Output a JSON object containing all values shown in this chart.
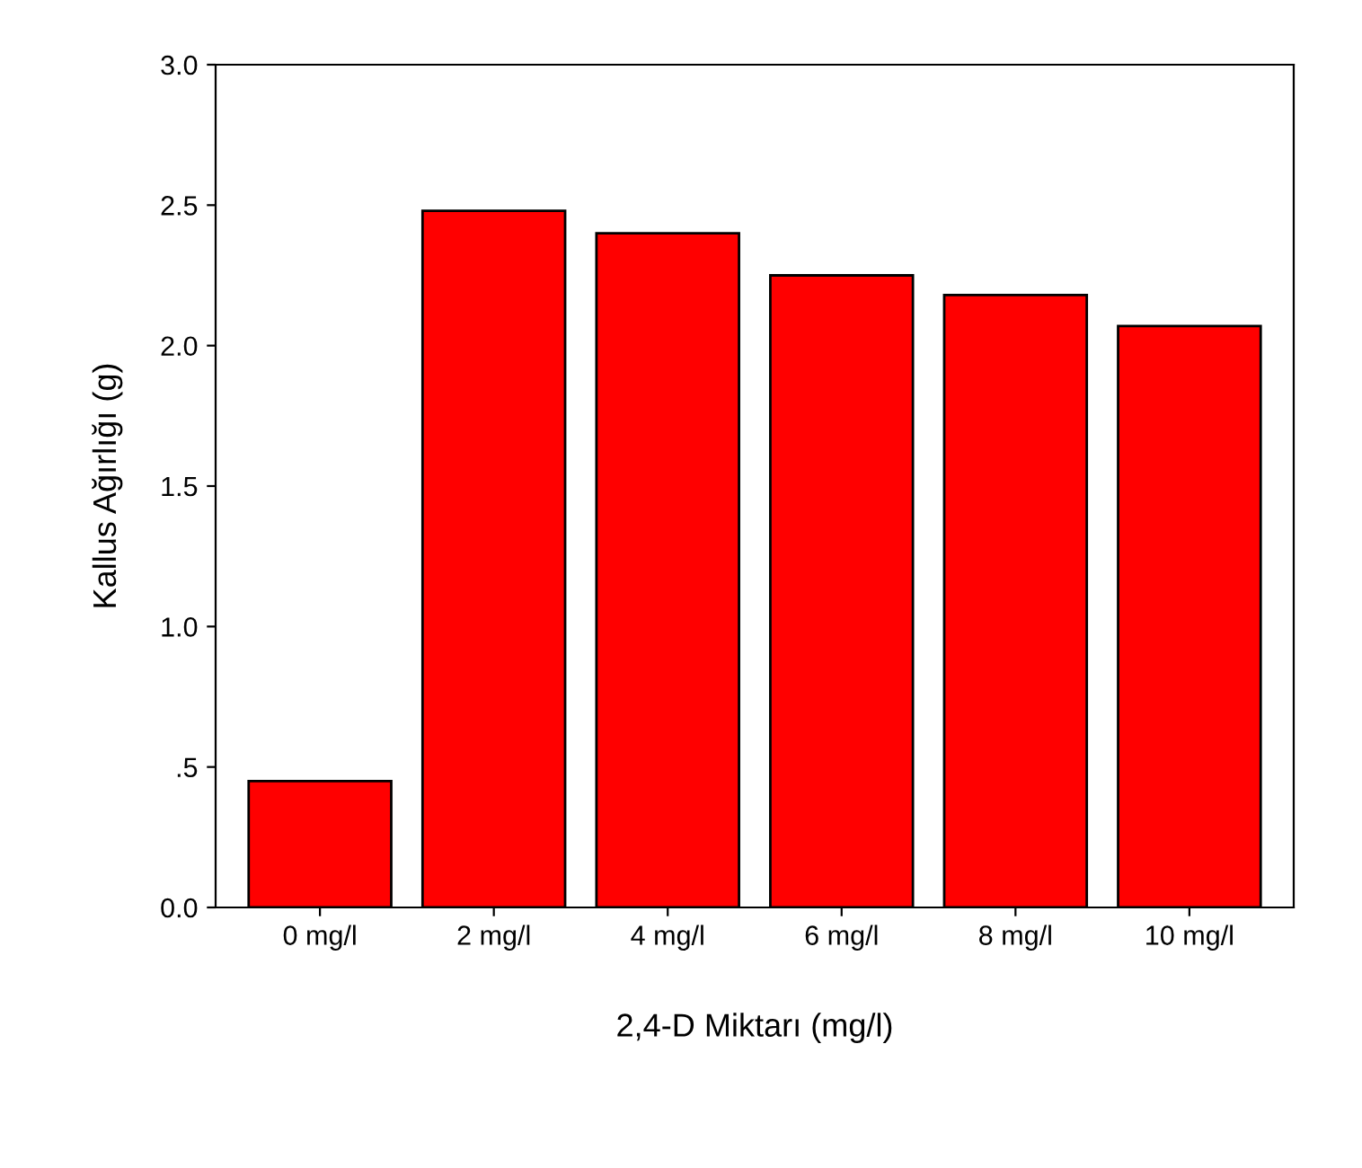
{
  "chart_data": {
    "type": "bar",
    "xlabel": "2,4-D Miktarı (mg/l)",
    "ylabel": "Kallus Ağırlığı (g)",
    "categories": [
      "0 mg/l",
      "2 mg/l",
      "4 mg/l",
      "6 mg/l",
      "8 mg/l",
      "10 mg/l"
    ],
    "values": [
      0.45,
      2.48,
      2.4,
      2.25,
      2.18,
      2.07
    ],
    "color": "#ff0000",
    "ylim": [
      0,
      3
    ],
    "yticks": [
      {
        "value": 0,
        "label": "0.0"
      },
      {
        "value": 0.5,
        "label": ".5"
      },
      {
        "value": 1,
        "label": "1.0"
      },
      {
        "value": 1.5,
        "label": "1.5"
      },
      {
        "value": 2,
        "label": "2.0"
      },
      {
        "value": 2.5,
        "label": "2.5"
      },
      {
        "value": 3,
        "label": "3.0"
      }
    ],
    "grid": false
  }
}
